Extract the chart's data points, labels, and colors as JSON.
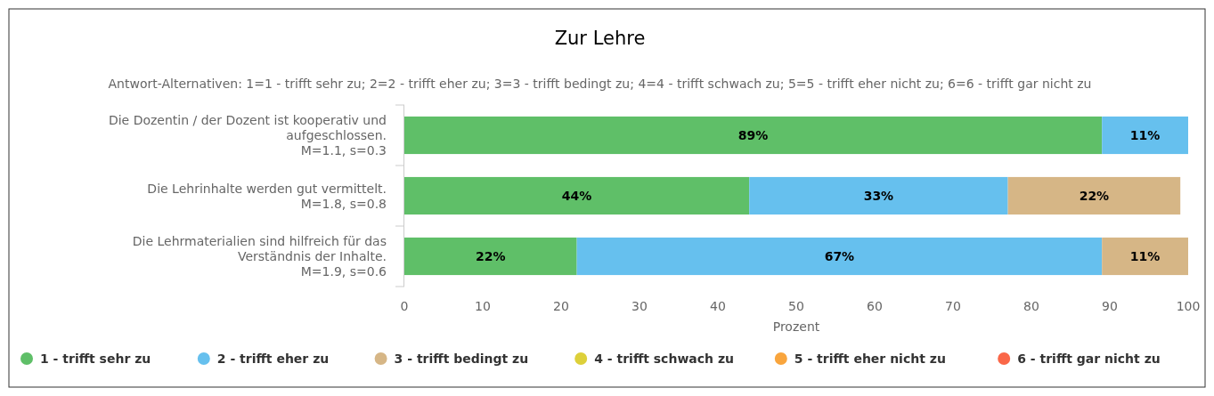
{
  "chart_data": {
    "type": "bar",
    "orientation": "horizontal",
    "stacked": true,
    "title": "Zur Lehre",
    "subtitle": "Antwort-Alternativen: 1=1 - trifft sehr zu; 2=2 - trifft eher zu; 3=3 - trifft bedingt zu; 4=4 - trifft schwach zu; 5=5 - trifft eher nicht zu; 6=6 - trifft gar nicht zu",
    "xlabel": "Prozent",
    "categories": [
      "Die Dozentin / der Dozent ist kooperativ und aufgeschlossen.\nM=1.1, s=0.3",
      "Die Lehrinhalte werden gut vermittelt.\nM=1.8, s=0.8",
      "Die Lehrmaterialien sind hilfreich für das Verständnis der Inhalte.\nM=1.9, s=0.6"
    ],
    "series": [
      {
        "name": "1 - trifft sehr zu",
        "color": "#5fbf68",
        "values": [
          89,
          44,
          22
        ],
        "value_labels": [
          "89%",
          "44%",
          "22%"
        ]
      },
      {
        "name": "2 - trifft eher zu",
        "color": "#66c0ee",
        "values": [
          11,
          33,
          67
        ],
        "value_labels": [
          "11%",
          "33%",
          "67%"
        ]
      },
      {
        "name": "3 - trifft bedingt zu",
        "color": "#d6b686",
        "values": [
          null,
          22,
          11
        ],
        "value_labels": [
          null,
          "22%",
          "11%"
        ]
      },
      {
        "name": "4 - trifft schwach zu",
        "color": "#ddd03a",
        "values": [
          null,
          null,
          null
        ]
      },
      {
        "name": "5 - trifft eher nicht zu",
        "color": "#f9a53d",
        "values": [
          null,
          null,
          null
        ]
      },
      {
        "name": "6 - trifft gar nicht zu",
        "color": "#fa6748",
        "values": [
          null,
          null,
          null
        ]
      }
    ],
    "xlim": [
      0,
      100
    ],
    "xticks": [
      0,
      10,
      20,
      30,
      40,
      50,
      60,
      70,
      80,
      90,
      100
    ],
    "grid": false,
    "legend": "bottom"
  }
}
